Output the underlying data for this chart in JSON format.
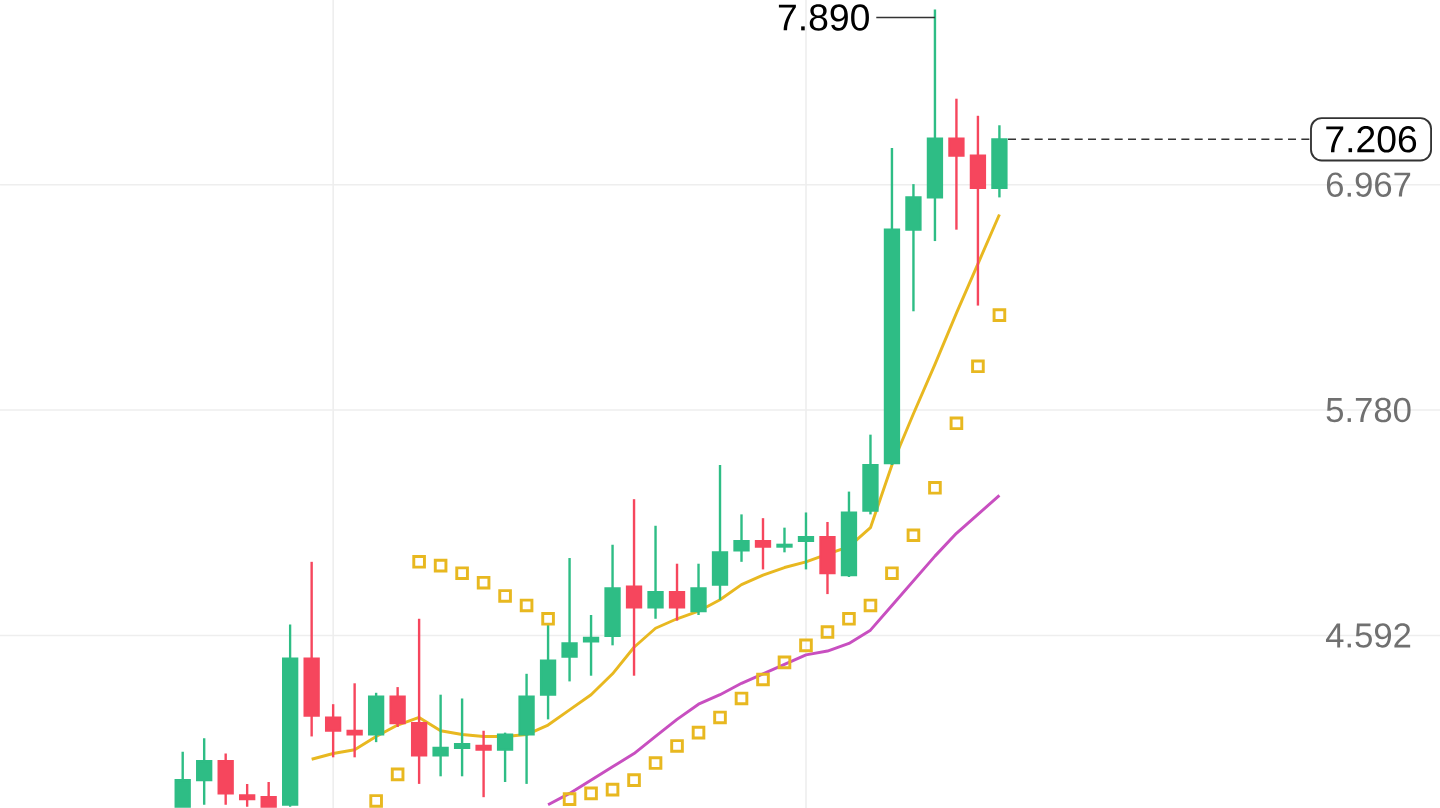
{
  "chart_data": {
    "type": "candlestick",
    "categories": [
      null,
      null,
      null,
      null,
      null,
      null,
      null,
      null,
      null,
      null,
      null,
      null,
      null,
      null,
      null,
      null,
      null,
      null,
      null,
      null,
      null,
      null,
      null,
      null,
      null,
      null,
      null,
      null,
      null,
      null,
      null,
      null,
      null,
      null,
      null,
      null,
      null,
      null,
      null,
      null,
      null,
      null,
      null,
      null,
      null,
      null,
      null,
      null,
      null,
      null,
      null,
      null,
      null,
      null,
      null,
      null,
      null,
      null,
      null,
      null,
      null,
      null,
      null,
      null,
      null,
      null,
      null
    ],
    "ohlc": [
      null,
      null,
      null,
      null,
      null,
      null,
      null,
      null,
      [
        3.69,
        3.98,
        3.69,
        3.83
      ],
      [
        3.83,
        4.05,
        3.7,
        3.93
      ],
      [
        3.93,
        3.97,
        3.7,
        3.76
      ],
      [
        3.75,
        3.81,
        3.69,
        3.73
      ],
      [
        3.74,
        3.82,
        3.69,
        3.69
      ],
      [
        3.7,
        4.65,
        3.69,
        4.47
      ],
      [
        4.47,
        4.98,
        4.06,
        4.17
      ],
      [
        4.16,
        4.23,
        3.95,
        4.09
      ],
      [
        4.09,
        4.34,
        3.95,
        4.07
      ],
      [
        4.07,
        4.29,
        4.03,
        4.27
      ],
      [
        4.27,
        4.32,
        4.11,
        4.13
      ],
      [
        4.13,
        4.68,
        3.81,
        3.96
      ],
      [
        3.96,
        4.28,
        3.85,
        4.0
      ],
      [
        4.0,
        4.26,
        3.85,
        4.02
      ],
      [
        4.01,
        4.09,
        3.74,
        3.99
      ],
      [
        3.99,
        4.08,
        3.82,
        4.07
      ],
      [
        4.07,
        4.39,
        3.81,
        4.27
      ],
      [
        4.28,
        4.65,
        4.15,
        4.46
      ],
      [
        4.48,
        5.0,
        4.35,
        4.55
      ],
      [
        4.56,
        4.7,
        4.38,
        4.58
      ],
      [
        4.59,
        5.07,
        4.54,
        4.84
      ],
      [
        4.85,
        5.31,
        4.38,
        4.74
      ],
      [
        4.74,
        5.17,
        4.68,
        4.82
      ],
      [
        4.82,
        4.97,
        4.67,
        4.74
      ],
      [
        4.72,
        4.97,
        4.7,
        4.84
      ],
      [
        4.86,
        5.49,
        4.78,
        5.03
      ],
      [
        5.04,
        5.23,
        4.98,
        5.09
      ],
      [
        5.09,
        5.21,
        4.94,
        5.06
      ],
      [
        5.06,
        5.16,
        5.03,
        5.07
      ],
      [
        5.09,
        5.24,
        4.94,
        5.11
      ],
      [
        5.11,
        5.19,
        4.81,
        4.92
      ],
      [
        4.91,
        5.35,
        4.9,
        5.24
      ],
      [
        5.25,
        5.65,
        5.23,
        5.49
      ],
      [
        5.5,
        7.16,
        5.49,
        6.73
      ],
      [
        6.73,
        6.97,
        6.3,
        6.9
      ],
      [
        6.9,
        7.89,
        6.67,
        7.21
      ],
      [
        7.21,
        7.42,
        6.73,
        7.12
      ],
      [
        7.12,
        7.33,
        6.33,
        6.95
      ],
      [
        6.95,
        7.28,
        6.9,
        7.206
      ],
      null,
      null,
      null,
      null,
      null,
      null,
      null,
      null,
      null,
      null,
      null,
      null,
      null,
      null,
      null,
      null,
      null,
      null,
      null,
      null
    ],
    "colors": [
      null,
      null,
      null,
      null,
      null,
      null,
      null,
      null,
      "#2ebd85",
      "#2ebd85",
      "#f6465d",
      "#f6465d",
      "#f6465d",
      "#2ebd85",
      "#f6465d",
      "#f6465d",
      "#f6465d",
      "#2ebd85",
      "#f6465d",
      "#f6465d",
      "#2ebd85",
      "#2ebd85",
      "#f6465d",
      "#2ebd85",
      "#2ebd85",
      "#2ebd85",
      "#2ebd85",
      "#2ebd85",
      "#2ebd85",
      "#f6465d",
      "#2ebd85",
      "#f6465d",
      "#2ebd85",
      "#2ebd85",
      "#2ebd85",
      "#f6465d",
      "#2ebd85",
      "#2ebd85",
      "#f6465d",
      "#2ebd85",
      "#2ebd85",
      "#2ebd85",
      "#2ebd85",
      "#2ebd85",
      "#f6465d",
      "#f6465d",
      "#2ebd85",
      null,
      null,
      null,
      null,
      null,
      null,
      null,
      null,
      null,
      null,
      null,
      null,
      null,
      null,
      null,
      null,
      null,
      null,
      null,
      null
    ],
    "series": [
      {
        "type": "line",
        "color": "#e8b820",
        "values": [
          null,
          null,
          null,
          null,
          null,
          null,
          null,
          null,
          null,
          null,
          null,
          null,
          null,
          null,
          3.94,
          3.97,
          3.99,
          4.06,
          4.12,
          4.16,
          4.09,
          4.07,
          4.06,
          4.06,
          4.07,
          4.12,
          4.2,
          4.28,
          4.39,
          4.53,
          4.63,
          4.68,
          4.72,
          4.78,
          4.86,
          4.91,
          4.95,
          4.98,
          5.02,
          5.06,
          5.16,
          5.49,
          5.76,
          6.02,
          6.29,
          6.55,
          6.81,
          null,
          null,
          null,
          null,
          null,
          null,
          null,
          null,
          null,
          null,
          null,
          null,
          null,
          null,
          null,
          null,
          null,
          null,
          null,
          null
        ]
      },
      {
        "type": "line",
        "color": "#c84fc0",
        "values": [
          null,
          null,
          null,
          null,
          null,
          null,
          null,
          null,
          null,
          null,
          null,
          null,
          null,
          null,
          null,
          null,
          null,
          null,
          null,
          null,
          null,
          null,
          null,
          null,
          null,
          3.7,
          3.76,
          3.83,
          3.9,
          3.97,
          4.06,
          4.15,
          4.23,
          4.28,
          4.34,
          4.39,
          4.44,
          4.49,
          4.51,
          4.55,
          4.62,
          4.75,
          4.88,
          5.01,
          5.13,
          5.23,
          5.33,
          null,
          null,
          null,
          null,
          null,
          null,
          null,
          null,
          null,
          null,
          null,
          null,
          null,
          null,
          null,
          null,
          null,
          null,
          null,
          null
        ]
      },
      {
        "type": "scatter",
        "marker": "square",
        "color": "#e8b820",
        "values": [
          null,
          null,
          null,
          null,
          null,
          null,
          null,
          null,
          null,
          null,
          null,
          null,
          null,
          null,
          null,
          null,
          null,
          3.72,
          3.86,
          4.98,
          4.96,
          4.92,
          4.87,
          4.8,
          4.75,
          4.68,
          3.73,
          3.76,
          3.78,
          3.83,
          3.92,
          4.01,
          4.08,
          4.16,
          4.26,
          4.36,
          4.45,
          4.54,
          4.61,
          4.68,
          4.75,
          4.92,
          5.12,
          5.37,
          5.71,
          6.01,
          6.28,
          null,
          null,
          null,
          null,
          null,
          null,
          null,
          null,
          null,
          null,
          null,
          null,
          null,
          null,
          null,
          null,
          null,
          null,
          null,
          null
        ]
      }
    ],
    "ylim": [
      3.683,
      7.94
    ],
    "yticks": [
      {
        "value": 4.592,
        "label": "4.592"
      },
      {
        "value": 5.78,
        "label": "5.780"
      },
      {
        "value": 6.967,
        "label": "6.967"
      }
    ],
    "tick_labels": "y",
    "grid": "y",
    "ref_lines": [
      {
        "axis": "y",
        "value": 7.206,
        "label": "7.206",
        "line_style": "dashed",
        "color": "#333333"
      }
    ],
    "annotations": [
      "7.890"
    ]
  }
}
